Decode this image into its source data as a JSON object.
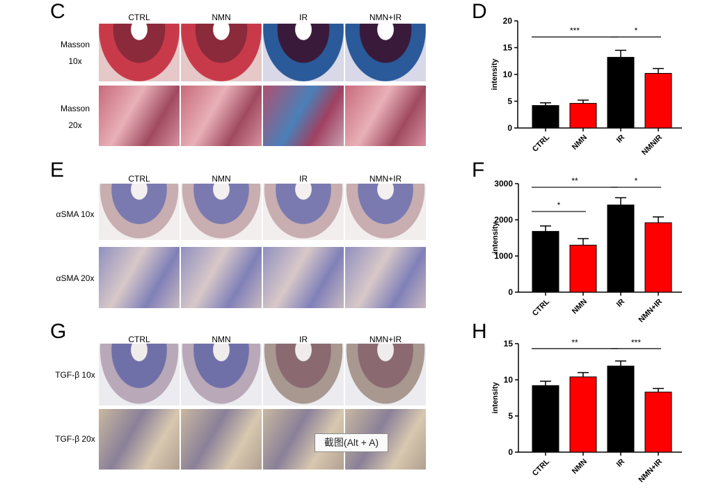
{
  "panel_letters": {
    "c": "C",
    "d": "D",
    "e": "E",
    "f": "F",
    "g": "G",
    "h": "H"
  },
  "columns": [
    "CTRL",
    "NMN",
    "IR",
    "NMN+IR"
  ],
  "rows": {
    "c1": [
      "Masson",
      "10x"
    ],
    "c2": [
      "Masson",
      "20x"
    ],
    "e1": "αSMA 10x",
    "e2": "αSMA 20x",
    "g1": "TGF-β 10x",
    "g2": "TGF-β 20x"
  },
  "tooltip": "截图(Alt + A)",
  "colors": {
    "black": "#000000",
    "red": "#ff0000"
  },
  "chart_data": [
    {
      "id": "D",
      "type": "bar",
      "ylabel": "intensity",
      "ylim": [
        0,
        20
      ],
      "yticks": [
        0,
        5,
        10,
        15,
        20
      ],
      "categories": [
        "CTRL",
        "NMN",
        "IR",
        "NMNIR"
      ],
      "values": [
        4.2,
        4.6,
        13.2,
        10.2
      ],
      "errors": [
        0.5,
        0.6,
        1.3,
        0.9
      ],
      "bar_colors": [
        "#000000",
        "#ff0000",
        "#000000",
        "#ff0000"
      ],
      "annotations": [
        {
          "from": 0,
          "to": 2,
          "y": 17,
          "text": "***"
        },
        {
          "from": 2,
          "to": 3,
          "y": 17,
          "text": "*"
        }
      ]
    },
    {
      "id": "F",
      "type": "bar",
      "ylabel": "intensity",
      "ylim": [
        0,
        3000
      ],
      "yticks": [
        0,
        1000,
        2000,
        3000
      ],
      "categories": [
        "CTRL",
        "NMN",
        "IR",
        "NMN+IR"
      ],
      "values": [
        1680,
        1300,
        2410,
        1920
      ],
      "errors": [
        150,
        180,
        200,
        160
      ],
      "bar_colors": [
        "#000000",
        "#ff0000",
        "#000000",
        "#ff0000"
      ],
      "annotations": [
        {
          "from": 0,
          "to": 2,
          "y": 2900,
          "text": "**"
        },
        {
          "from": 2,
          "to": 3,
          "y": 2900,
          "text": "*"
        },
        {
          "from": 0,
          "to": 1,
          "y": 2230,
          "text": "*"
        }
      ]
    },
    {
      "id": "H",
      "type": "bar",
      "ylabel": "intensity",
      "ylim": [
        0,
        15
      ],
      "yticks": [
        0,
        5,
        10,
        15
      ],
      "categories": [
        "CTRL",
        "NMN",
        "IR",
        "NMN+IR"
      ],
      "values": [
        9.2,
        10.4,
        11.9,
        8.3
      ],
      "errors": [
        0.6,
        0.6,
        0.7,
        0.5
      ],
      "bar_colors": [
        "#000000",
        "#ff0000",
        "#000000",
        "#ff0000"
      ],
      "annotations": [
        {
          "from": 0,
          "to": 2,
          "y": 14.3,
          "text": "**"
        },
        {
          "from": 2,
          "to": 3,
          "y": 14.3,
          "text": "***"
        }
      ]
    }
  ]
}
